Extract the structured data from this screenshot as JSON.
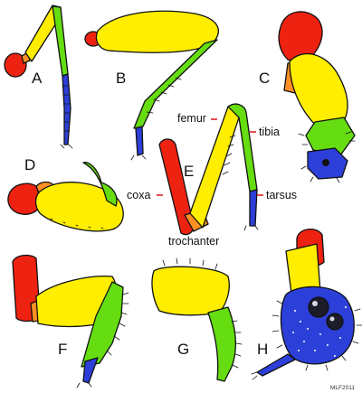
{
  "colors": {
    "coxa": "#ee2211",
    "trochanter": "#ff8f22",
    "femur": "#ffee00",
    "tibia": "#66dd11",
    "tarsus": "#2d3fd9",
    "outline": "#111111",
    "label_tick": "#dd2222"
  },
  "diagram": {
    "panels": [
      {
        "letter": "A"
      },
      {
        "letter": "B"
      },
      {
        "letter": "C"
      },
      {
        "letter": "D"
      },
      {
        "letter": "E"
      },
      {
        "letter": "F"
      },
      {
        "letter": "G"
      },
      {
        "letter": "H"
      }
    ],
    "segment_labels": {
      "femur": "femur",
      "tibia": "tibia",
      "coxa": "coxa",
      "tarsus": "tarsus",
      "trochanter": "trochanter"
    },
    "credit": "MLF2011"
  }
}
